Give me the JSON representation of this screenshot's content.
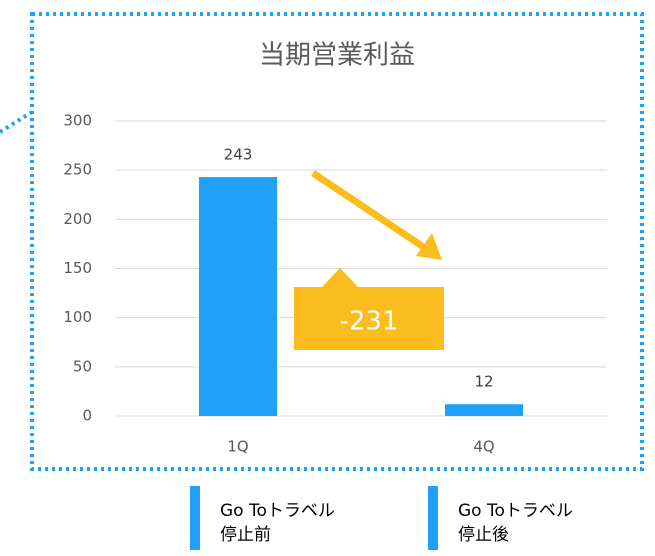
{
  "chart_data": {
    "type": "bar",
    "title": "当期営業利益",
    "categories": [
      "1Q",
      "4Q"
    ],
    "values": [
      243,
      12
    ],
    "color": "#1ea1f7",
    "ylim": [
      0,
      300
    ],
    "yticks": [
      0,
      50,
      100,
      150,
      200,
      250,
      300
    ],
    "grid": true,
    "annotation": "-231",
    "legend": [
      [
        "Go Toトラベル",
        "停止前"
      ],
      [
        "Go Toトラベル",
        "停止後"
      ]
    ]
  }
}
